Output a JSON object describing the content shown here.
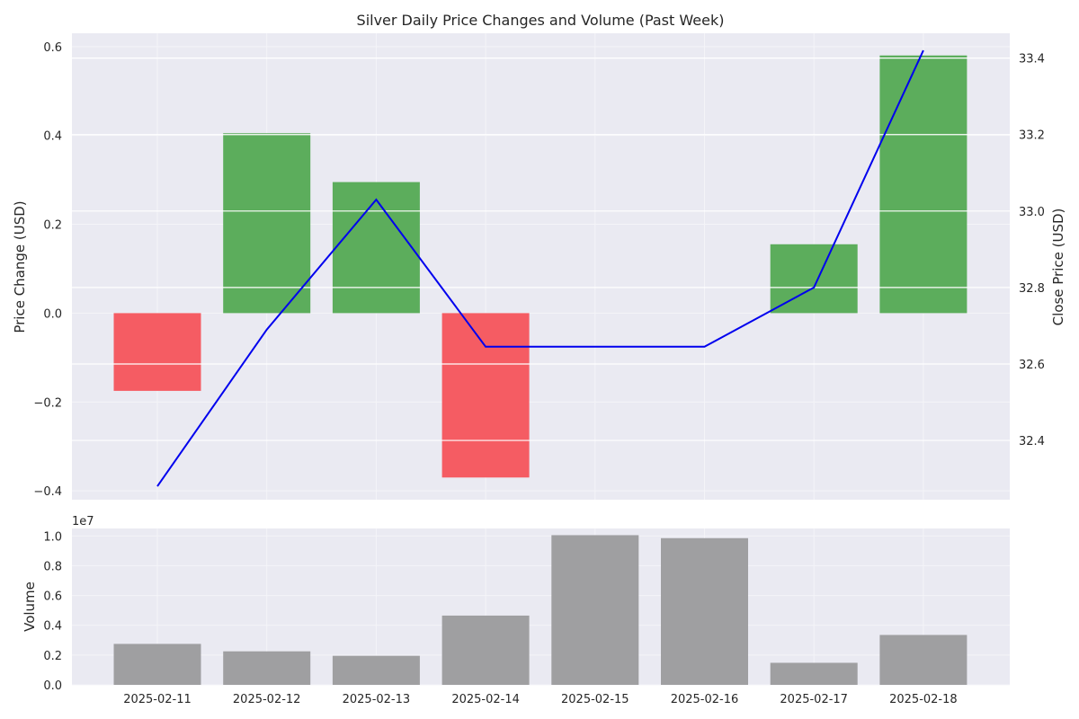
{
  "title": "Silver Daily Price Changes and Volume (Past Week)",
  "colors": {
    "up": "#5cad5c",
    "down": "#f55c63",
    "close_line": "#0000ee",
    "volume": "#9f9fa1",
    "panel_bg": "#eaeaf2",
    "grid_major": "#ffffff"
  },
  "chart_data": [
    {
      "type": "bar",
      "panel": "price",
      "ylabel": "Price Change (USD)",
      "y2label": "Close Price (USD)",
      "categories": [
        "2025-02-11",
        "2025-02-12",
        "2025-02-13",
        "2025-02-14",
        "2025-02-15",
        "2025-02-16",
        "2025-02-17",
        "2025-02-18"
      ],
      "price_change": [
        -0.175,
        0.405,
        0.295,
        -0.37,
        0.0,
        0.0,
        0.155,
        0.58
      ],
      "close_price": [
        32.28,
        32.69,
        33.03,
        32.645,
        32.645,
        32.645,
        32.8,
        33.42
      ],
      "ylim": [
        -0.42,
        0.63
      ],
      "y2lim": [
        32.245,
        33.465
      ],
      "yticks": [
        -0.4,
        -0.2,
        0.0,
        0.2,
        0.4,
        0.6
      ],
      "ytick_labels": [
        "−0.4",
        "−0.2",
        "0.0",
        "0.2",
        "0.4",
        "0.6"
      ],
      "y2ticks": [
        32.4,
        32.6,
        32.8,
        33.0,
        33.2,
        33.4
      ],
      "y2tick_labels": [
        "32.4",
        "32.6",
        "32.8",
        "33.0",
        "33.2",
        "33.4"
      ]
    },
    {
      "type": "bar",
      "panel": "volume",
      "ylabel": "Volume",
      "offset_label": "1e7",
      "categories": [
        "2025-02-11",
        "2025-02-12",
        "2025-02-13",
        "2025-02-14",
        "2025-02-15",
        "2025-02-16",
        "2025-02-17",
        "2025-02-18"
      ],
      "values": [
        2750000,
        2250000,
        1950000,
        4650000,
        10050000,
        9850000,
        1480000,
        3350000
      ],
      "ylim": [
        0,
        10500000
      ],
      "yticks": [
        0,
        2000000,
        4000000,
        6000000,
        8000000,
        10000000
      ],
      "ytick_labels": [
        "0.0",
        "0.2",
        "0.4",
        "0.6",
        "0.8",
        "1.0"
      ]
    }
  ]
}
